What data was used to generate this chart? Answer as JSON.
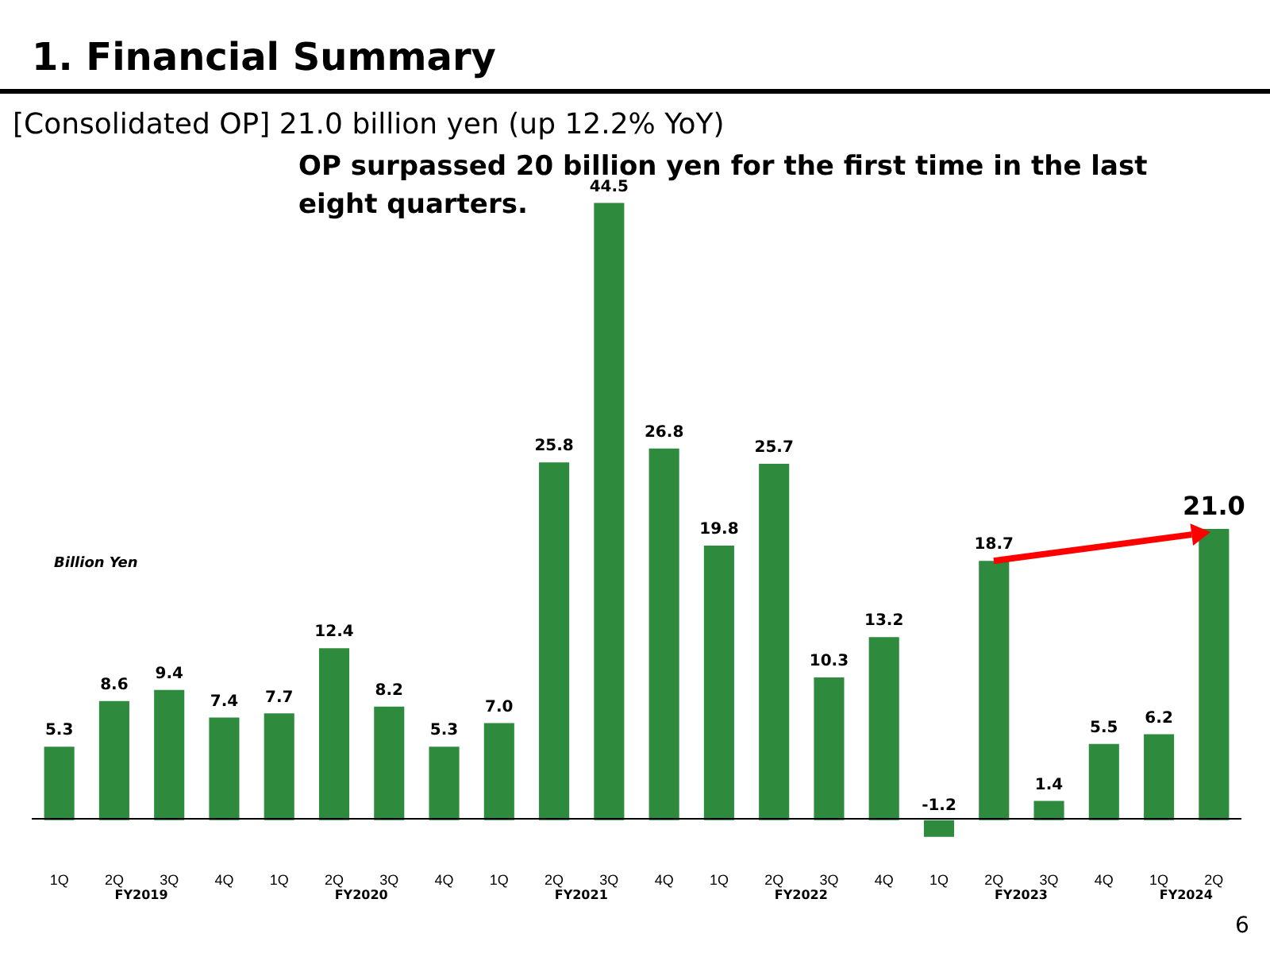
{
  "chart_data": {
    "type": "bar",
    "title": "1.  Financial Summary",
    "subtitle": "[Consolidated OP] 21.0 billion yen (up 12.2% YoY)",
    "ylabel": "Billion Yen",
    "categories": [
      "1Q",
      "2Q",
      "3Q",
      "4Q",
      "1Q",
      "2Q",
      "3Q",
      "4Q",
      "1Q",
      "2Q",
      "3Q",
      "4Q",
      "1Q",
      "2Q",
      "3Q",
      "4Q",
      "1Q",
      "2Q",
      "3Q",
      "4Q",
      "1Q",
      "2Q"
    ],
    "values": [
      5.3,
      8.6,
      9.4,
      7.4,
      7.7,
      12.4,
      8.2,
      5.3,
      7.0,
      25.8,
      44.5,
      26.8,
      19.8,
      25.7,
      10.3,
      13.2,
      -1.2,
      18.7,
      1.4,
      5.5,
      6.2,
      21.0
    ],
    "value_labels": [
      "5.3",
      "8.6",
      "9.4",
      "7.4",
      "7.7",
      "12.4",
      "8.2",
      "5.3",
      "7.0",
      "25.8",
      "44.5",
      "26.8",
      "19.8",
      "25.7",
      "10.3",
      "13.2",
      "-1.2",
      "18.7",
      "1.4",
      "5.5",
      "6.2",
      "21.0"
    ],
    "color": "#2e8b3e",
    "legend": false,
    "grid": false,
    "annotations": [
      "OP surpassed 20 billion yen for the first time in the last eight quarters.",
      "FY2019",
      "FY2020",
      "FY2021",
      "FY2022",
      "FY2023",
      "FY2024",
      "6"
    ]
  }
}
